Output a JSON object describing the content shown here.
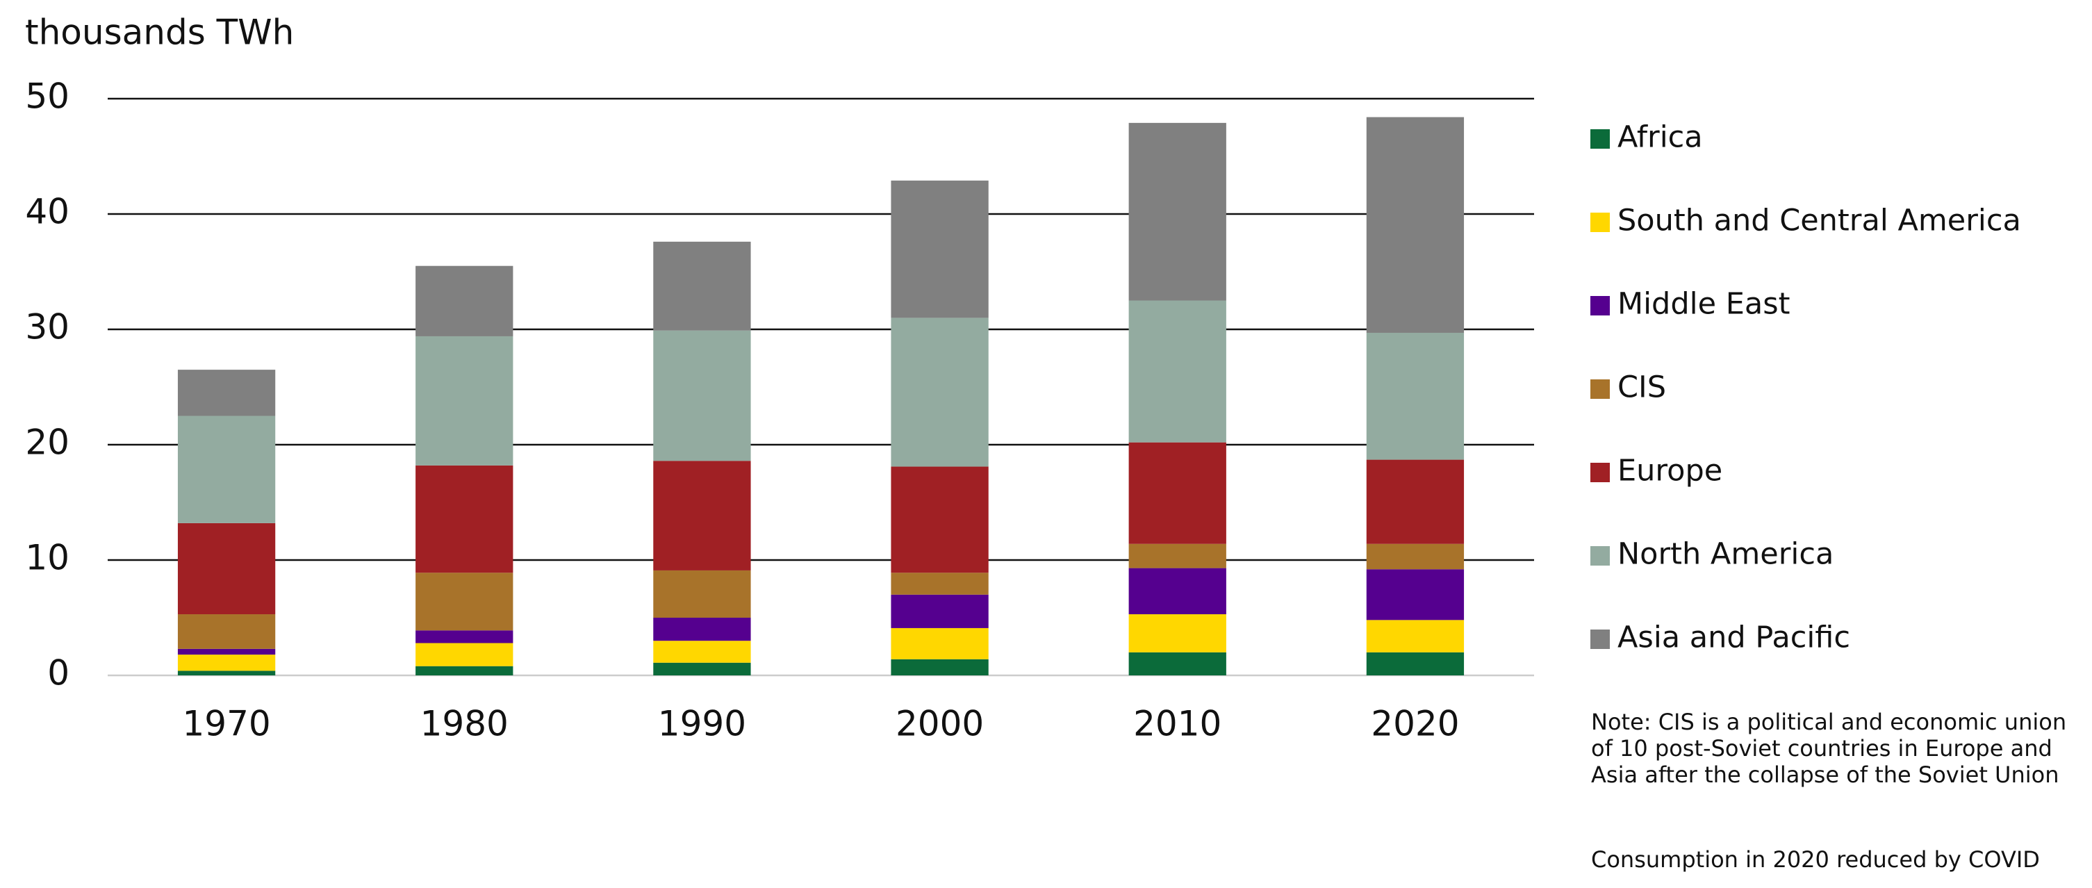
{
  "chart_data": {
    "type": "stacked_bar",
    "y_axis_label": "thousands TWh",
    "categories": [
      "1970",
      "1980",
      "1990",
      "2000",
      "2010",
      "2020"
    ],
    "series": [
      {
        "name": "Africa",
        "color": "#0b6b3a",
        "values": [
          0.4,
          0.8,
          1.1,
          1.4,
          2.0,
          2.0
        ]
      },
      {
        "name": "South and Central America",
        "color": "#ffd700",
        "values": [
          1.4,
          2.0,
          1.9,
          2.7,
          3.3,
          2.8
        ]
      },
      {
        "name": "Middle East",
        "color": "#55008f",
        "values": [
          0.5,
          1.1,
          2.0,
          2.9,
          4.0,
          4.4
        ]
      },
      {
        "name": "CIS",
        "color": "#a8732a",
        "values": [
          3.0,
          5.0,
          4.1,
          1.9,
          2.1,
          2.2
        ]
      },
      {
        "name": "Europe",
        "color": "#a02024",
        "values": [
          7.9,
          9.3,
          9.5,
          9.2,
          8.8,
          7.3
        ]
      },
      {
        "name": "North America",
        "color": "#93aba0",
        "values": [
          9.3,
          11.2,
          11.3,
          12.9,
          12.3,
          11.0
        ]
      },
      {
        "name": "Asia and Pacific",
        "color": "#808080",
        "values": [
          4.0,
          6.1,
          7.7,
          11.9,
          15.4,
          18.7
        ]
      }
    ],
    "ylim": [
      0,
      50
    ],
    "yticks": [
      0,
      10,
      20,
      30,
      40,
      50
    ],
    "grid": true,
    "legend": "right",
    "notes": [
      "Note: CIS is a political and economic union of 10 post-Soviet countries in Europe and Asia after the collapse of the Soviet Union",
      "Consumption in 2020 reduced by COVID"
    ]
  }
}
